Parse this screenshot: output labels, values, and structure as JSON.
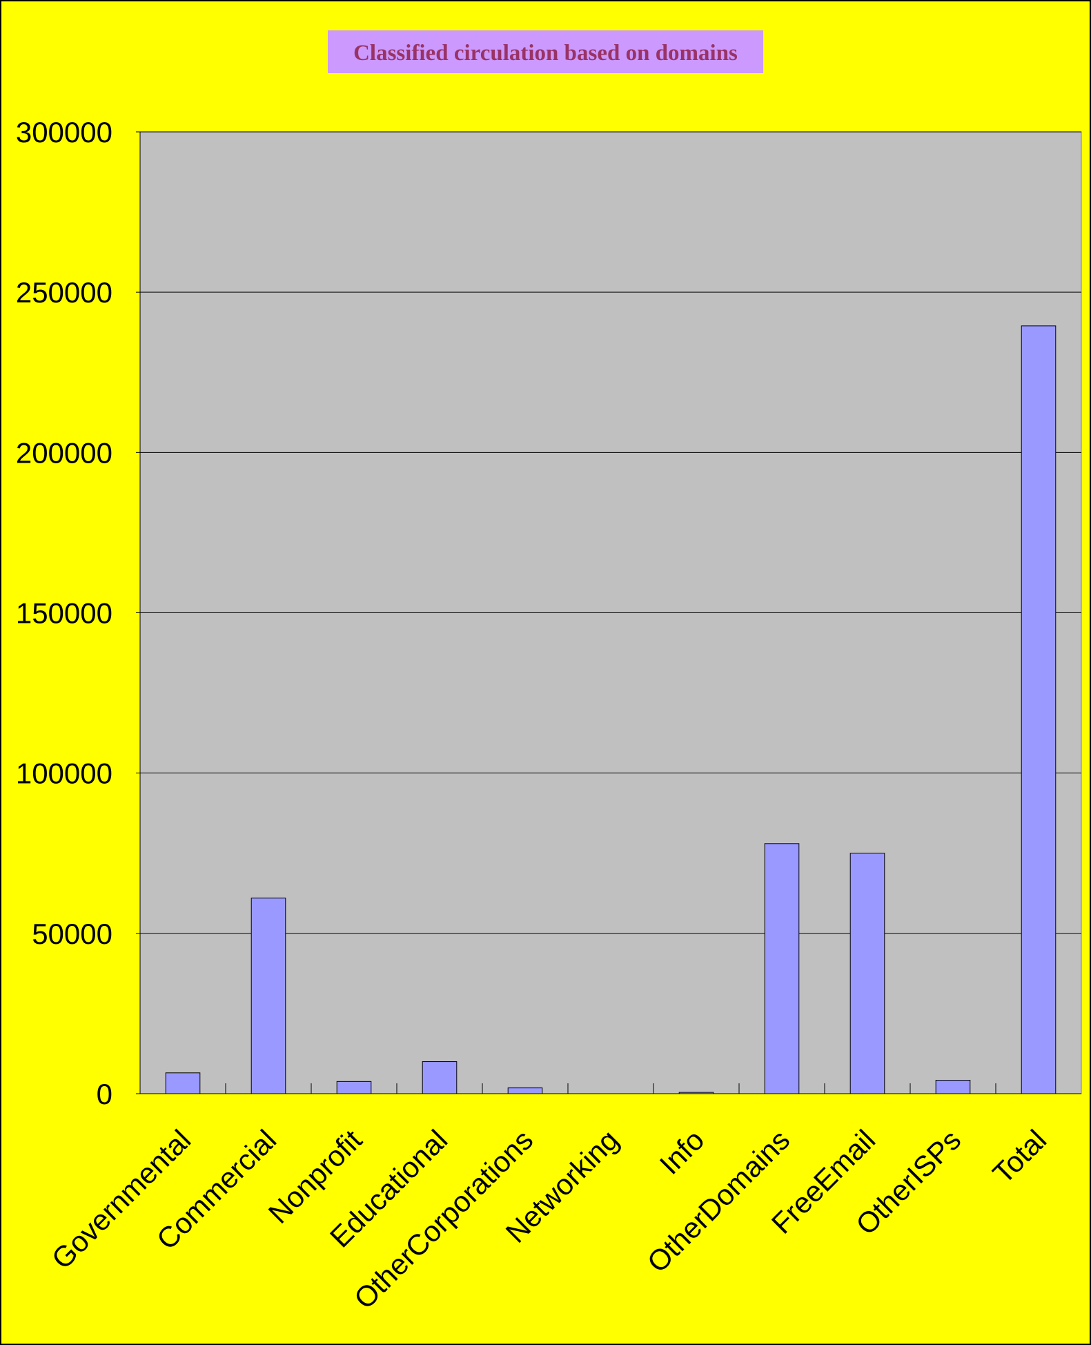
{
  "chart_data": {
    "type": "bar",
    "title": "Classified circulation based on domains",
    "xlabel": "",
    "ylabel": "",
    "categories": [
      "Governmental",
      "Commercial",
      "Nonprofit",
      "Educational",
      "OtherCorporations",
      "Networking",
      "Info",
      "OtherDomains",
      "FreeEmail",
      "OtherISPs",
      "Total"
    ],
    "values": [
      6500,
      61000,
      3800,
      10000,
      1800,
      0,
      400,
      78000,
      75000,
      4200,
      239500
    ],
    "ylim": [
      0,
      300000
    ],
    "yticks": [
      "0",
      "50000",
      "100000",
      "150000",
      "200000",
      "250000",
      "300000"
    ],
    "grid": true,
    "legend": "none",
    "colors": {
      "background": "#FFFF00",
      "plot_area": "#C0C0C0",
      "bar_fill": "#9999FF",
      "bar_stroke": "#000000",
      "title_box": "#CC99FF",
      "title_text": "#993366",
      "gridline": "#000000"
    }
  }
}
